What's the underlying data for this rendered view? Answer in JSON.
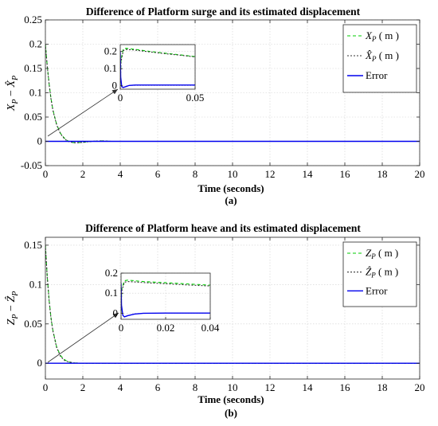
{
  "chart_data": [
    {
      "id": "a",
      "type": "line",
      "title": "Difference of Platform surge and its estimated displacement",
      "xlabel": "Time (seconds)",
      "ylabel": "X_P - X̂_P",
      "caption": "(a)",
      "xlim": [
        0,
        20
      ],
      "ylim": [
        -0.05,
        0.25
      ],
      "xticks": [
        0,
        2,
        4,
        6,
        8,
        10,
        12,
        14,
        16,
        18,
        20
      ],
      "yticks": [
        -0.05,
        0,
        0.05,
        0.1,
        0.15,
        0.2,
        0.25
      ],
      "ytick_labels": [
        "-0.05",
        "0",
        "0.05",
        "0.1",
        "0.15",
        "0.2",
        "0.25"
      ],
      "grid": true,
      "legend_position": "top-right",
      "series": [
        {
          "name": "X_P ( m )",
          "legend_label": [
            "X",
            "P",
            "( m )"
          ],
          "color": "#00cc00",
          "dash": "4,3",
          "x": [
            0,
            0.1,
            0.2,
            0.3,
            0.4,
            0.6,
            0.8,
            1.0,
            1.2,
            1.4,
            1.6,
            2.0,
            2.5,
            3.0,
            3.5,
            4.0,
            20
          ],
          "y": [
            0.2,
            0.155,
            0.118,
            0.088,
            0.065,
            0.035,
            0.017,
            0.007,
            0.001,
            -0.002,
            -0.003,
            -0.002,
            0.0,
            0.001,
            0.0,
            0.0,
            0.0
          ]
        },
        {
          "name": "X̂_P ( m )",
          "legend_label": [
            "X̂",
            "P",
            "( m )"
          ],
          "color": "#333333",
          "dash": "2,2",
          "x": [
            0,
            0.1,
            0.2,
            0.3,
            0.4,
            0.6,
            0.8,
            1.0,
            1.2,
            1.4,
            1.6,
            2.0,
            2.5,
            3.0,
            3.5,
            4.0,
            20
          ],
          "y": [
            0.2,
            0.154,
            0.117,
            0.087,
            0.064,
            0.034,
            0.016,
            0.006,
            0.0,
            -0.002,
            -0.003,
            -0.002,
            0.0,
            0.001,
            0.0,
            0.0,
            0.0
          ]
        },
        {
          "name": "Error",
          "legend_label": [
            "Error",
            "",
            ""
          ],
          "color": "#0000ee",
          "dash": "",
          "x": [
            0,
            20
          ],
          "y": [
            0.0,
            0.0
          ]
        }
      ],
      "inset": {
        "xlim": [
          0,
          0.05
        ],
        "ylim": [
          -0.02,
          0.24
        ],
        "xticks": [
          0,
          0.05
        ],
        "xtick_labels": [
          "0",
          "0.05"
        ],
        "yticks": [
          0,
          0.1,
          0.2
        ],
        "ytick_labels": [
          "0",
          "0.1",
          "0.2"
        ],
        "series": [
          {
            "color": "#00cc00",
            "dash": "4,3",
            "x": [
              0,
              0.0005,
              0.002,
              0.004,
              0.01,
              0.02,
              0.03,
              0.04,
              0.05
            ],
            "y": [
              0.0,
              0.15,
              0.215,
              0.218,
              0.212,
              0.2,
              0.19,
              0.18,
              0.17
            ]
          },
          {
            "color": "#333333",
            "dash": "2,2",
            "x": [
              0,
              0.0005,
              0.002,
              0.004,
              0.01,
              0.02,
              0.03,
              0.04,
              0.05
            ],
            "y": [
              0.0,
              0.14,
              0.205,
              0.212,
              0.208,
              0.197,
              0.187,
              0.178,
              0.168
            ]
          },
          {
            "color": "#0000ee",
            "dash": "",
            "x": [
              0,
              0.0003,
              0.001,
              0.002,
              0.004,
              0.006,
              0.01,
              0.02,
              0.05
            ],
            "y": [
              0.2,
              0.05,
              -0.005,
              -0.01,
              -0.004,
              0.002,
              0.004,
              0.004,
              0.004
            ]
          }
        ]
      }
    },
    {
      "id": "b",
      "type": "line",
      "title": "Difference of Platform heave and its estimated displacement",
      "xlabel": "Time (seconds)",
      "ylabel": "Z_P - Ẑ_P",
      "caption": "(b)",
      "xlim": [
        0,
        20
      ],
      "ylim": [
        -0.02,
        0.16
      ],
      "xticks": [
        0,
        2,
        4,
        6,
        8,
        10,
        12,
        14,
        16,
        18,
        20
      ],
      "yticks": [
        0,
        0.05,
        0.1,
        0.15
      ],
      "ytick_labels": [
        "0",
        "0.05",
        "0.1",
        "0.15"
      ],
      "grid": true,
      "legend_position": "top-right",
      "series": [
        {
          "name": "Z_P ( m )",
          "legend_label": [
            "Z",
            "P",
            "( m )"
          ],
          "color": "#00cc00",
          "dash": "4,3",
          "x": [
            0,
            0.1,
            0.2,
            0.3,
            0.4,
            0.6,
            0.8,
            1.0,
            1.2,
            1.5,
            2.0,
            20
          ],
          "y": [
            0.15,
            0.11,
            0.08,
            0.058,
            0.042,
            0.021,
            0.01,
            0.005,
            0.002,
            0.0005,
            0.0,
            0.0
          ]
        },
        {
          "name": "Ẑ_P ( m )",
          "legend_label": [
            "Ẑ",
            "P",
            "( m )"
          ],
          "color": "#333333",
          "dash": "2,2",
          "x": [
            0,
            0.1,
            0.2,
            0.3,
            0.4,
            0.6,
            0.8,
            1.0,
            1.2,
            1.5,
            2.0,
            20
          ],
          "y": [
            0.15,
            0.109,
            0.079,
            0.057,
            0.041,
            0.02,
            0.009,
            0.004,
            0.002,
            0.0005,
            0.0,
            0.0
          ]
        },
        {
          "name": "Error",
          "legend_label": [
            "Error",
            "",
            ""
          ],
          "color": "#0000ee",
          "dash": "",
          "x": [
            0,
            20
          ],
          "y": [
            0.0,
            0.0
          ]
        }
      ],
      "inset": {
        "xlim": [
          0,
          0.04
        ],
        "ylim": [
          -0.03,
          0.2
        ],
        "xticks": [
          0,
          0.02,
          0.04
        ],
        "xtick_labels": [
          "0",
          "0.02",
          "0.04"
        ],
        "yticks": [
          0,
          0.1,
          0.2
        ],
        "ytick_labels": [
          "0",
          "0.1",
          "0.2"
        ],
        "series": [
          {
            "color": "#00cc00",
            "dash": "4,3",
            "x": [
              0,
              0.0003,
              0.0015,
              0.003,
              0.006,
              0.01,
              0.02,
              0.03,
              0.04
            ],
            "y": [
              0.0,
              0.12,
              0.162,
              0.165,
              0.162,
              0.158,
              0.152,
              0.146,
              0.14
            ]
          },
          {
            "color": "#333333",
            "dash": "2,2",
            "x": [
              0,
              0.0003,
              0.0015,
              0.003,
              0.006,
              0.01,
              0.02,
              0.03,
              0.04
            ],
            "y": [
              0.0,
              0.11,
              0.155,
              0.158,
              0.156,
              0.153,
              0.147,
              0.141,
              0.136
            ]
          },
          {
            "color": "#0000ee",
            "dash": "",
            "x": [
              0,
              0.0002,
              0.0008,
              0.0015,
              0.003,
              0.006,
              0.01,
              0.02,
              0.04
            ],
            "y": [
              0.15,
              0.04,
              -0.01,
              -0.018,
              -0.012,
              -0.004,
              0.0,
              0.001,
              0.001
            ]
          }
        ]
      }
    }
  ]
}
